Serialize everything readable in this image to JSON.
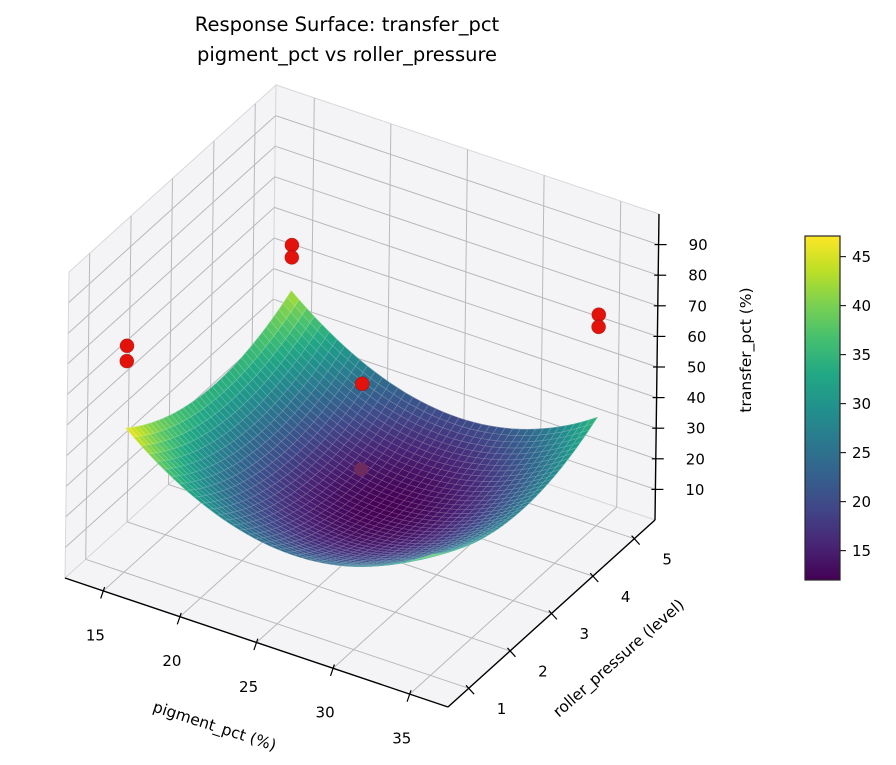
{
  "chart_data": {
    "type": "surface3d",
    "title": "Response Surface: transfer_pct",
    "subtitle": "pigment_pct vs roller_pressure",
    "xlabel": "pigment_pct (%)",
    "ylabel": "roller_pressure (level)",
    "zlabel": "transfer_pct (%)",
    "xlim": [
      12.5,
      37.5
    ],
    "ylim": [
      0.5,
      5.5
    ],
    "zlim": [
      0,
      100
    ],
    "xticks": [
      15,
      20,
      25,
      30,
      35
    ],
    "yticks": [
      1,
      2,
      3,
      4,
      5
    ],
    "zticks": [
      10,
      20,
      30,
      40,
      50,
      60,
      70,
      80,
      90
    ],
    "grid": true,
    "legend": "none",
    "surface": {
      "description": "Fitted quadratic response-surface bowl, colored by height (viridis)",
      "fitted_model_estimate": "transfer_pct = 12 + 0.19*(pigment_pct-26)^2 + 2.5*(roller_pressure-3.2)^2",
      "z0": 12,
      "cx": 26,
      "ax": 0.19,
      "cy": 3.2,
      "ay": 2.5,
      "domain_x": [
        15,
        35
      ],
      "domain_y": [
        1,
        5
      ],
      "z_min": 12,
      "z_max": 47.1,
      "grid_n": 40
    },
    "scatter": {
      "marker_color": "#e3120b",
      "occluded_marker_color": "#6e2b5e",
      "points": [
        {
          "pigment_pct": 15,
          "roller_pressure": 1,
          "transfer_pct": 74,
          "occluded": false
        },
        {
          "pigment_pct": 15,
          "roller_pressure": 1,
          "transfer_pct": 69,
          "occluded": false
        },
        {
          "pigment_pct": 15,
          "roller_pressure": 5,
          "transfer_pct": 58,
          "occluded": false
        },
        {
          "pigment_pct": 15,
          "roller_pressure": 5,
          "transfer_pct": 54,
          "occluded": false
        },
        {
          "pigment_pct": 35,
          "roller_pressure": 5,
          "transfer_pct": 69,
          "occluded": false
        },
        {
          "pigment_pct": 35,
          "roller_pressure": 5,
          "transfer_pct": 65,
          "occluded": false
        },
        {
          "pigment_pct": 25,
          "roller_pressure": 3,
          "transfer_pct": 54,
          "occluded": false
        },
        {
          "pigment_pct": 25,
          "roller_pressure": 3,
          "transfer_pct": 26,
          "occluded": true
        }
      ]
    },
    "colorbar": {
      "ticks": [
        15,
        20,
        25,
        30,
        35,
        40,
        45
      ],
      "cmin": 12,
      "cmax": 47.1,
      "position": "right"
    },
    "colormap": {
      "name": "viridis",
      "stops": [
        [
          0.0,
          "#440154"
        ],
        [
          0.1,
          "#482475"
        ],
        [
          0.2,
          "#414487"
        ],
        [
          0.3,
          "#355f8d"
        ],
        [
          0.4,
          "#2a788e"
        ],
        [
          0.5,
          "#21918c"
        ],
        [
          0.6,
          "#22a884"
        ],
        [
          0.7,
          "#44bf70"
        ],
        [
          0.8,
          "#7ad151"
        ],
        [
          0.9,
          "#bddf26"
        ],
        [
          1.0,
          "#fde725"
        ]
      ]
    }
  }
}
